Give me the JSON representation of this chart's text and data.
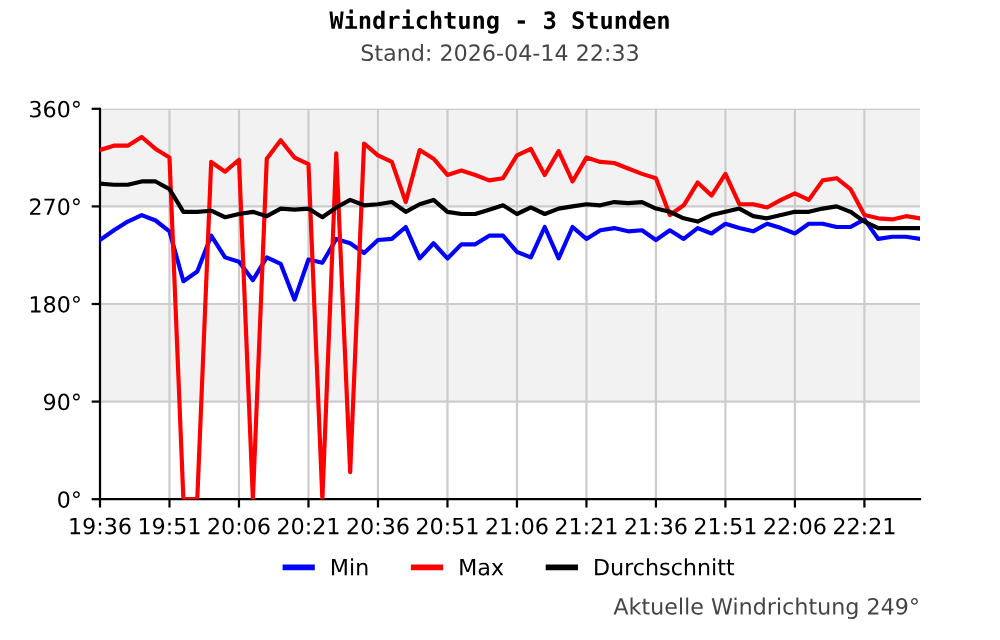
{
  "chart_data": {
    "type": "line",
    "title": "Windrichtung - 3 Stunden",
    "subtitle": "Stand: 2026-04-14 22:33",
    "x": [
      19.6,
      19.65,
      19.7,
      19.75,
      19.8,
      19.85,
      19.9,
      19.95,
      20.0,
      20.05,
      20.1,
      20.15,
      20.2,
      20.25,
      20.3,
      20.35,
      20.4,
      20.45,
      20.5,
      20.55,
      20.6,
      20.65,
      20.7,
      20.75,
      20.8,
      20.85,
      20.9,
      20.95,
      21.0,
      21.05,
      21.1,
      21.15,
      21.2,
      21.25,
      21.3,
      21.35,
      21.4,
      21.45,
      21.5,
      21.55,
      21.6,
      21.65,
      21.7,
      21.75,
      21.8,
      21.85,
      21.9,
      21.95,
      22.0,
      22.05,
      22.1,
      22.15,
      22.2,
      22.25,
      22.3,
      22.35,
      22.4,
      22.45,
      22.5,
      22.55
    ],
    "series": [
      {
        "name": "Min",
        "color": "#0000ff",
        "values": [
          239,
          248,
          256,
          262,
          257,
          247,
          201,
          210,
          243,
          223,
          219,
          202,
          223,
          217,
          184,
          221,
          218,
          240,
          236,
          227,
          239,
          240,
          251,
          222,
          236,
          222,
          235,
          235,
          243,
          243,
          228,
          223,
          251,
          222,
          251,
          240,
          248,
          250,
          247,
          248,
          239,
          248,
          240,
          250,
          245,
          254,
          250,
          247,
          254,
          250,
          245,
          254,
          254,
          251,
          251,
          258,
          240,
          242,
          242,
          240
        ]
      },
      {
        "name": "Max",
        "color": "#ff0000",
        "values": [
          322,
          326,
          326,
          334,
          323,
          315,
          0,
          0,
          311,
          302,
          313,
          0,
          314,
          331,
          315,
          309,
          0,
          319,
          25,
          328,
          317,
          311,
          274,
          322,
          314,
          299,
          303,
          299,
          294,
          296,
          317,
          323,
          299,
          321,
          293,
          315,
          311,
          310,
          305,
          300,
          296,
          262,
          271,
          292,
          280,
          300,
          272,
          272,
          269,
          276,
          282,
          276,
          294,
          296,
          286,
          262,
          259,
          258,
          261,
          259
        ]
      },
      {
        "name": "Durchschnitt",
        "color": "#000000",
        "values": [
          291,
          290,
          290,
          293,
          293,
          286,
          265,
          265,
          266,
          260,
          263,
          265,
          261,
          268,
          267,
          268,
          260,
          269,
          276,
          271,
          272,
          274,
          265,
          272,
          276,
          265,
          263,
          263,
          267,
          271,
          263,
          269,
          263,
          268,
          270,
          272,
          271,
          274,
          273,
          274,
          268,
          265,
          259,
          256,
          262,
          265,
          268,
          261,
          259,
          262,
          265,
          265,
          268,
          270,
          265,
          256,
          250,
          250,
          250,
          250
        ]
      }
    ],
    "xlim": [
      19.6,
      22.55
    ],
    "xticks": [
      {
        "value": 19.6,
        "label": "19:36"
      },
      {
        "value": 19.85,
        "label": "19:51"
      },
      {
        "value": 20.1,
        "label": "20:06"
      },
      {
        "value": 20.35,
        "label": "20:21"
      },
      {
        "value": 20.6,
        "label": "20:36"
      },
      {
        "value": 20.85,
        "label": "20:51"
      },
      {
        "value": 21.1,
        "label": "21:06"
      },
      {
        "value": 21.35,
        "label": "21:21"
      },
      {
        "value": 21.6,
        "label": "21:36"
      },
      {
        "value": 21.85,
        "label": "21:51"
      },
      {
        "value": 22.1,
        "label": "22:06"
      },
      {
        "value": 22.35,
        "label": "22:21"
      }
    ],
    "ylim": [
      0,
      360
    ],
    "yticks": [
      {
        "value": 0,
        "label": "0°"
      },
      {
        "value": 90,
        "label": "90°"
      },
      {
        "value": 180,
        "label": "180°"
      },
      {
        "value": 270,
        "label": "270°"
      },
      {
        "value": 360,
        "label": "360°"
      }
    ],
    "bands": [
      {
        "axis": "y",
        "from": 90,
        "to": 180,
        "color": "#f2f2f2"
      },
      {
        "axis": "y",
        "from": 270,
        "to": 360,
        "color": "#f2f2f2"
      }
    ],
    "grid": true,
    "legend": "bottom",
    "marker": "none",
    "line_style": "solid",
    "annotations": [
      "Aktuelle Windrichtung 249°"
    ]
  }
}
